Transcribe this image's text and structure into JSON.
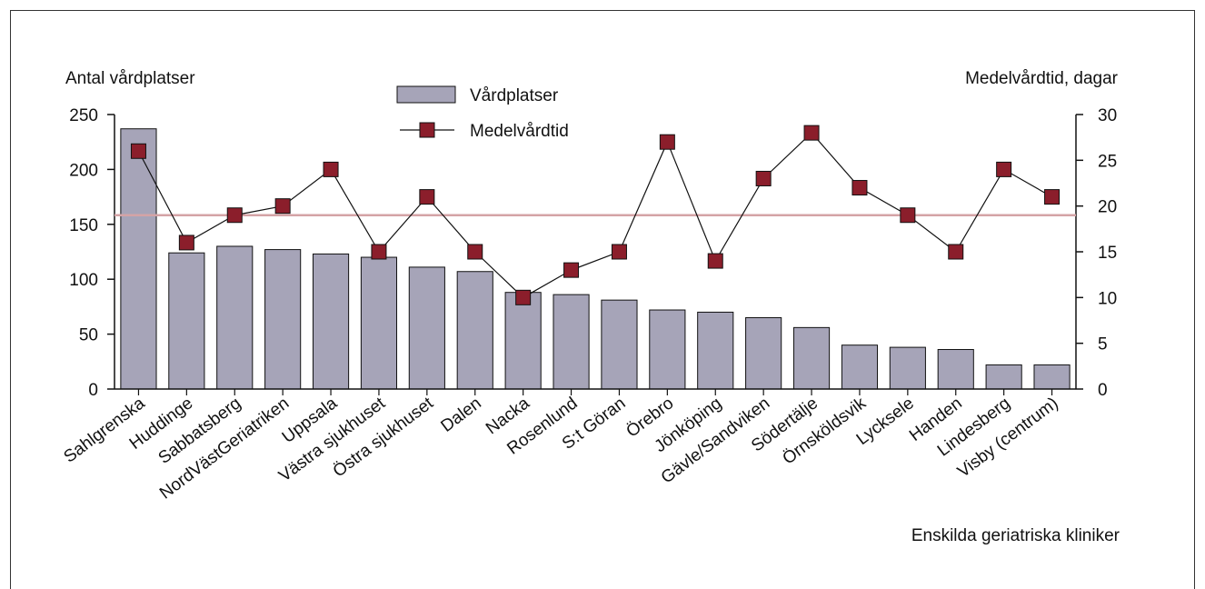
{
  "chart_data": {
    "type": "bar",
    "xlabel": "Enskilda geriatriska kliniker",
    "y_left_label": "Antal vårdplatser",
    "y_right_label": "Medelvårdtid, dagar",
    "y_left_lim": [
      0,
      250
    ],
    "y_left_ticks": [
      "0",
      "50",
      "100",
      "150",
      "200",
      "250"
    ],
    "y_right_lim": [
      0,
      30
    ],
    "y_right_ticks": [
      "0",
      "5",
      "10",
      "15",
      "20",
      "25",
      "30"
    ],
    "categories": [
      "Sahlgrenska",
      "Huddinge",
      "Sabbatsberg",
      "NordVästGeriatriken",
      "Uppsala",
      "Västra sjukhuset",
      "Östra sjukhuset",
      "Dalen",
      "Nacka",
      "Rosenlund",
      "S:t Göran",
      "Örebro",
      "Jönköping",
      "Gävle/Sandviken",
      "Södertälje",
      "Örnsköldsvik",
      "Lycksele",
      "Handen",
      "Lindesberg",
      "Visby (centrum)"
    ],
    "series": [
      {
        "name": "Vårdplatser",
        "kind": "bar",
        "axis": "left",
        "values": [
          237,
          124,
          130,
          127,
          123,
          120,
          111,
          107,
          88,
          86,
          81,
          72,
          70,
          65,
          56,
          40,
          38,
          36,
          22,
          22
        ]
      },
      {
        "name": "Medelvårdtid",
        "kind": "line",
        "axis": "right",
        "values": [
          26,
          16,
          19,
          20,
          24,
          15,
          21,
          15,
          10,
          13,
          15,
          27,
          14,
          23,
          28,
          22,
          19,
          15,
          24,
          21
        ]
      }
    ],
    "reference_line": {
      "axis": "right",
      "value": 19
    },
    "legend": "top-center",
    "grid": false
  },
  "colors": {
    "bar_fill": "#a6a4b8",
    "marker": "#8b1e2b",
    "reference_line": "#d4a3a6",
    "axis": "#111111"
  }
}
